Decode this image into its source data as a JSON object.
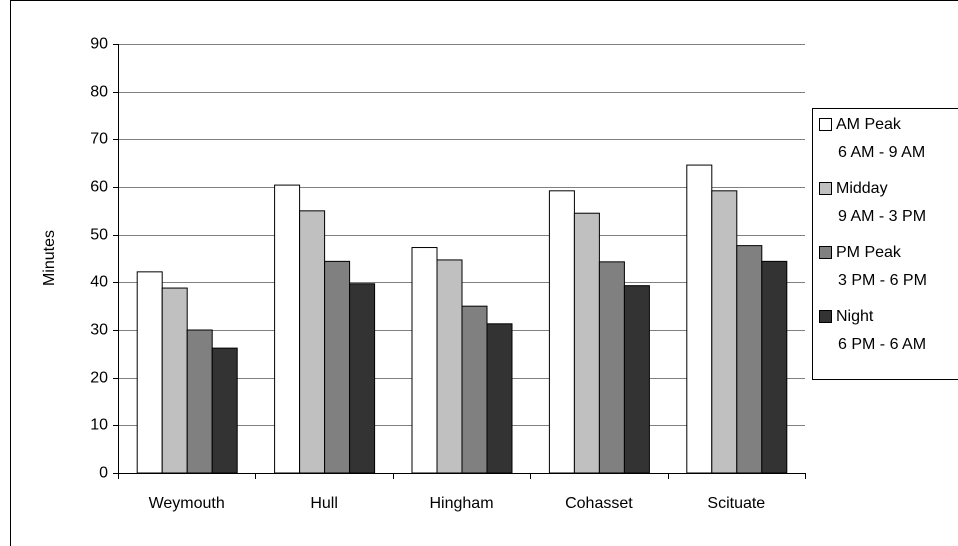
{
  "chart_data": {
    "type": "bar",
    "y_label": "Minutes",
    "categories": [
      "Weymouth",
      "Hull",
      "Hingham",
      "Cohasset",
      "Scituate"
    ],
    "series": [
      {
        "name": "AM Peak",
        "hours": "6 AM - 9 AM",
        "color": "#ffffff",
        "values": [
          42.2,
          60.4,
          47.3,
          59.2,
          64.6
        ]
      },
      {
        "name": "Midday",
        "hours": "9 AM - 3 PM",
        "color": "#c0c0c0",
        "values": [
          38.8,
          55,
          44.7,
          54.5,
          59.2
        ]
      },
      {
        "name": "PM Peak",
        "hours": "3 PM - 6 PM",
        "color": "#808080",
        "values": [
          30,
          44.4,
          35,
          44.3,
          47.7
        ]
      },
      {
        "name": "Night",
        "hours": "6 PM - 6 AM",
        "color": "#333333",
        "values": [
          26.2,
          39.7,
          31.3,
          39.3,
          44.4
        ]
      }
    ],
    "ylim": [
      0,
      90
    ],
    "yticks": [
      0,
      10,
      20,
      30,
      40,
      50,
      60,
      70,
      80,
      90
    ],
    "grid": true,
    "legend": "right"
  }
}
